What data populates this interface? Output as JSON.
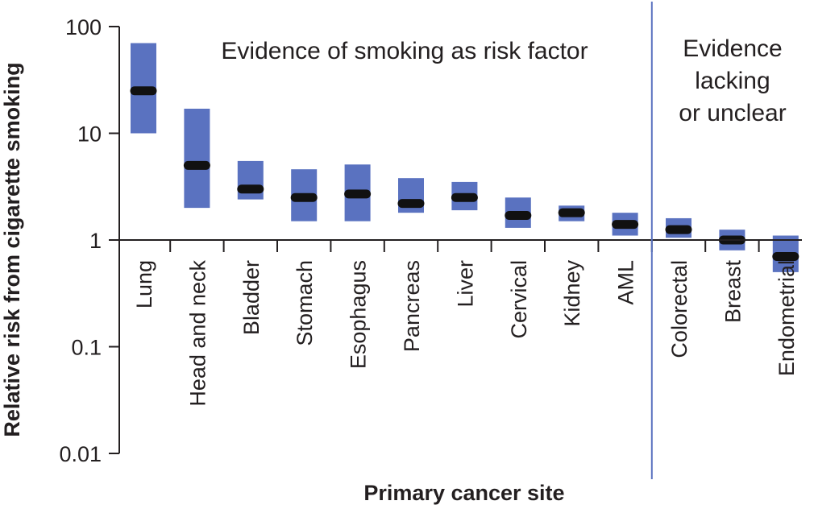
{
  "chart_data": {
    "type": "range-bar",
    "scale": "log",
    "title": "",
    "xlabel": "Primary cancer site",
    "ylabel": "Relative risk from cigarette smoking",
    "ylim": [
      0.01,
      100
    ],
    "yticks": [
      {
        "value": 100,
        "label": "100"
      },
      {
        "value": 10,
        "label": "10"
      },
      {
        "value": 1,
        "label": "1"
      },
      {
        "value": 0.1,
        "label": "0.1"
      },
      {
        "value": 0.01,
        "label": "0.01"
      }
    ],
    "categories": [
      "Lung",
      "Head and neck",
      "Bladder",
      "Stomach",
      "Esophagus",
      "Pancreas",
      "Liver",
      "Cervical",
      "Kidney",
      "AML",
      "Colorectal",
      "Breast",
      "Endometrial"
    ],
    "low": [
      10.0,
      2.0,
      2.4,
      1.5,
      1.5,
      1.8,
      1.9,
      1.3,
      1.5,
      1.1,
      1.05,
      0.8,
      0.5
    ],
    "high": [
      70.0,
      17.0,
      5.5,
      4.6,
      5.1,
      3.8,
      3.5,
      2.5,
      2.1,
      1.8,
      1.6,
      1.25,
      1.1
    ],
    "estimate": [
      25.0,
      5.0,
      3.0,
      2.5,
      2.7,
      2.2,
      2.5,
      1.7,
      1.8,
      1.4,
      1.25,
      1.0,
      0.7
    ],
    "colors": {
      "range": "#5a72c0",
      "estimate": "#111111",
      "divider": "#5a72c0",
      "axis": "#231f20"
    },
    "annotations": {
      "evidence_group": "Evidence of smoking as risk factor",
      "lacking_group": [
        "Evidence",
        "lacking",
        "or unclear"
      ]
    }
  }
}
